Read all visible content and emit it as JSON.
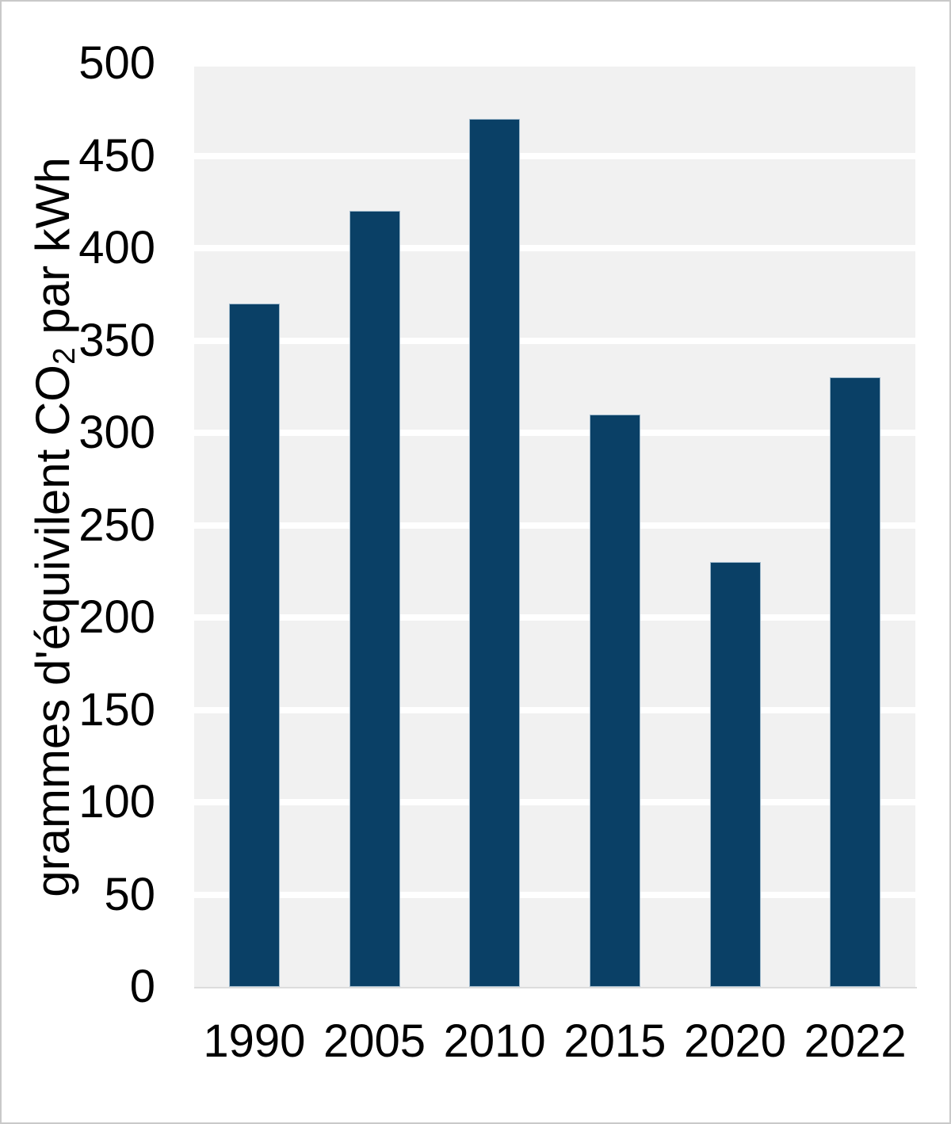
{
  "chart_data": {
    "type": "bar",
    "categories": [
      "1990",
      "2005",
      "2010",
      "2015",
      "2020",
      "2022"
    ],
    "values": [
      370,
      420,
      470,
      310,
      230,
      330
    ],
    "ylabel": "grammes d'équivilent CO2 par kWh",
    "ylabel_parts": {
      "prefix": "grammes d'équivilent CO",
      "subscript": "2",
      "suffix": " par kWh"
    },
    "xlabel": "",
    "ylim": [
      0,
      500
    ],
    "ytick_interval": 50,
    "yticks": [
      0,
      50,
      100,
      150,
      200,
      250,
      300,
      350,
      400,
      450,
      500
    ],
    "grid": "horizontal",
    "legend": "none",
    "colors": {
      "bar_fill": "#0a4066",
      "bar_border": "#9db8cb",
      "plot_background": "#f1f1f1",
      "gridline": "#ffffff",
      "axis_line": "#dcdcdc",
      "text": "#000000",
      "figure_border": "#c9c9c9",
      "figure_background": "#ffffff"
    }
  }
}
